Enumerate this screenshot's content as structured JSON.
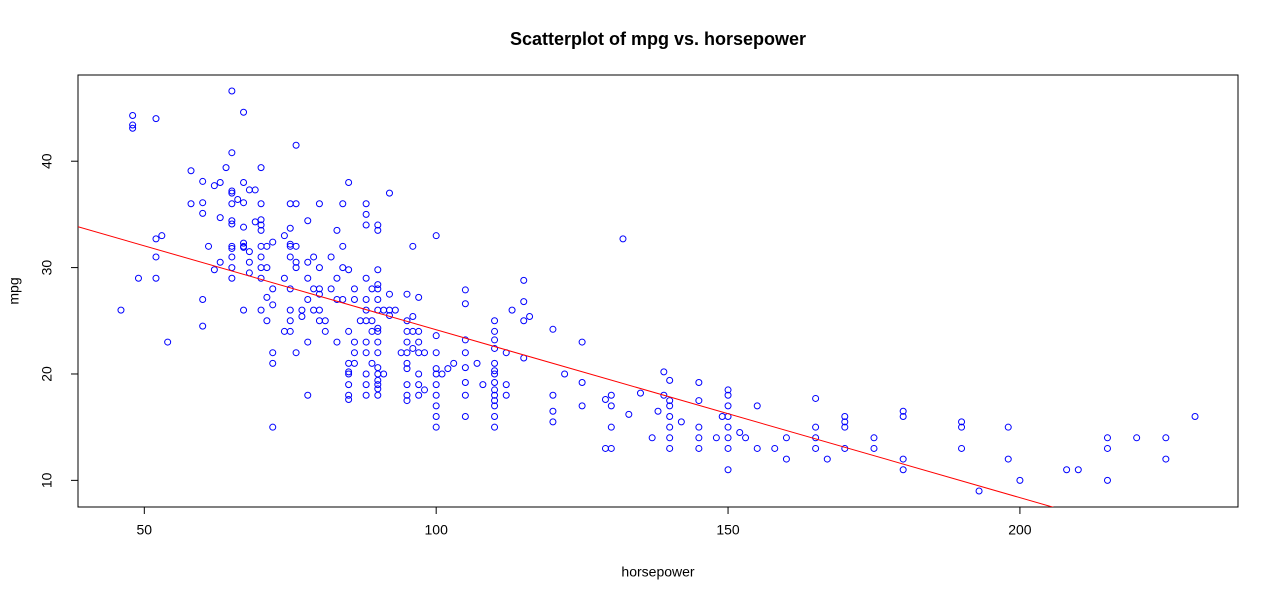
{
  "chart_data": {
    "type": "scatter",
    "title": "Scatterplot of mpg vs. horsepower",
    "x_label": "horsepower",
    "y_label": "mpg",
    "color": "blue",
    "x": [
      46,
      48,
      48,
      48,
      49,
      52,
      52,
      52,
      52,
      53,
      54,
      58,
      58,
      60,
      60,
      60,
      60,
      60,
      61,
      62,
      62,
      63,
      63,
      63,
      64,
      65,
      65,
      65,
      65,
      65,
      65,
      65,
      65,
      65,
      65,
      65,
      65,
      66,
      67,
      67,
      67,
      67,
      67,
      67,
      67,
      67,
      68,
      68,
      68,
      68,
      69,
      69,
      70,
      70,
      70,
      70,
      70,
      70,
      70,
      70,
      70,
      70,
      71,
      71,
      71,
      71,
      72,
      72,
      72,
      72,
      72,
      72,
      74,
      74,
      74,
      75,
      75,
      75,
      75,
      75,
      75,
      75,
      75,
      75,
      76,
      76,
      76,
      76,
      76,
      76,
      77,
      77,
      78,
      78,
      78,
      78,
      78,
      78,
      79,
      79,
      79,
      80,
      80,
      80,
      80,
      80,
      80,
      81,
      81,
      82,
      82,
      83,
      83,
      83,
      83,
      84,
      84,
      84,
      84,
      85,
      85,
      85,
      85,
      85,
      85,
      85,
      85,
      85,
      86,
      86,
      86,
      86,
      86,
      87,
      88,
      88,
      88,
      88,
      88,
      88,
      88,
      88,
      88,
      88,
      88,
      88,
      89,
      89,
      89,
      89,
      90,
      90,
      90,
      90,
      90,
      90,
      90,
      90,
      90,
      90,
      90,
      90,
      90,
      90,
      90,
      90,
      90,
      91,
      91,
      92,
      92,
      92,
      92,
      93,
      94,
      95,
      95,
      95,
      95,
      95,
      95,
      95,
      95,
      95,
      95,
      96,
      96,
      96,
      96,
      97,
      97,
      97,
      97,
      97,
      97,
      97,
      98,
      98,
      100,
      100,
      100,
      100,
      100,
      100,
      100,
      100,
      100,
      100,
      101,
      102,
      103,
      105,
      105,
      105,
      105,
      105,
      105,
      105,
      105,
      107,
      108,
      110,
      110,
      110,
      110,
      110,
      110,
      110,
      110,
      110,
      110,
      110,
      110,
      110,
      110,
      112,
      112,
      112,
      113,
      115,
      115,
      115,
      115,
      116,
      120,
      120,
      120,
      120,
      122,
      125,
      125,
      125,
      129,
      129,
      130,
      130,
      130,
      130,
      132,
      133,
      135,
      137,
      138,
      139,
      139,
      140,
      140,
      140,
      140,
      140,
      140,
      140,
      142,
      145,
      145,
      145,
      145,
      145,
      148,
      149,
      150,
      150,
      150,
      150,
      150,
      150,
      150,
      150,
      152,
      153,
      155,
      155,
      158,
      160,
      160,
      165,
      165,
      165,
      165,
      167,
      170,
      170,
      170,
      170,
      175,
      175,
      180,
      180,
      180,
      180,
      190,
      190,
      190,
      193,
      198,
      198,
      200,
      208,
      210,
      215,
      215,
      215,
      220,
      225,
      225,
      230
    ],
    "values": [
      26,
      43.4,
      44.3,
      43.1,
      29,
      44,
      29,
      31,
      32.7,
      33,
      23,
      39.1,
      36,
      38.1,
      36.1,
      35.1,
      27,
      24.5,
      32,
      37.7,
      29.8,
      38,
      34.7,
      30.5,
      39.4,
      46.6,
      40.8,
      37.2,
      37,
      36,
      34.4,
      34.1,
      32,
      31.8,
      31,
      30,
      29,
      36.4,
      44.6,
      38,
      36.1,
      33.8,
      32.3,
      31.9,
      32,
      26,
      37.3,
      31.5,
      30.5,
      29.5,
      34.3,
      37.3,
      39.4,
      36,
      34.5,
      34,
      33.5,
      32,
      31,
      30,
      29,
      26,
      32,
      30,
      27.2,
      25,
      32.4,
      28,
      26.5,
      22,
      21,
      15,
      33,
      29,
      24,
      36,
      33.7,
      32.2,
      32,
      31,
      28,
      26,
      25,
      24,
      41.5,
      36,
      32,
      30.5,
      30,
      22,
      25.4,
      26,
      34.4,
      30.5,
      29,
      27,
      23,
      18,
      31,
      28,
      26,
      36,
      30,
      28,
      27.5,
      26,
      25,
      24,
      25,
      28,
      31,
      33.5,
      29,
      27,
      23,
      36,
      32,
      30,
      27,
      38,
      29.8,
      24,
      21,
      20.2,
      20,
      19,
      18,
      17.6,
      27,
      28,
      23,
      22,
      21,
      25,
      36,
      35,
      34,
      29,
      27,
      26,
      25,
      23,
      22,
      20,
      19,
      18,
      28,
      25,
      24,
      21,
      34,
      33.5,
      29.8,
      28.4,
      28,
      27,
      26,
      24.3,
      24,
      23,
      22,
      20.6,
      20,
      19.4,
      19,
      18.6,
      18,
      26,
      20,
      37,
      27.5,
      26,
      25.5,
      26,
      22,
      27.5,
      25,
      24,
      23,
      22,
      21,
      20.5,
      19,
      18,
      17.5,
      32,
      25.4,
      24,
      22.4,
      27.2,
      24,
      23,
      22,
      20,
      19,
      18,
      22,
      18.5,
      33,
      23.6,
      22,
      20.5,
      20,
      19,
      18,
      17,
      16,
      15,
      20,
      20.5,
      21,
      27.9,
      26.6,
      23.2,
      22,
      20.6,
      19.2,
      18,
      16,
      21,
      19,
      25,
      24,
      23.2,
      22.4,
      21,
      20.3,
      20,
      19.2,
      18.5,
      18,
      17.5,
      17,
      16,
      15,
      22,
      19,
      18,
      26,
      28.8,
      26.8,
      25,
      21.5,
      25.4,
      24.2,
      18,
      16.5,
      15.5,
      20,
      23,
      19.2,
      17,
      17.6,
      13,
      18,
      17,
      15,
      13,
      32.7,
      16.2,
      18.2,
      14,
      16.5,
      20.2,
      18,
      19.4,
      17.5,
      17,
      16,
      15,
      14,
      13,
      15.5,
      19.2,
      17.5,
      15,
      14,
      13,
      14,
      16,
      18.5,
      18,
      17,
      16,
      15,
      14,
      13,
      11,
      14.5,
      14,
      17,
      13,
      13,
      14,
      12,
      17.7,
      15,
      14,
      13,
      12,
      16,
      15.5,
      15,
      13,
      14,
      13,
      16.5,
      16,
      12,
      11,
      15.5,
      15,
      13,
      9,
      15,
      12,
      10,
      11,
      11,
      14,
      13,
      10,
      14,
      14,
      12,
      16
    ],
    "xlim": [
      38.64,
      237.36
    ],
    "xticks": [
      50,
      100,
      150,
      200
    ],
    "ylim": [
      7.496,
      48.104
    ],
    "yticks": [
      10,
      20,
      30,
      40
    ],
    "trendline": {
      "intercept": 39.936,
      "slope": -0.1578,
      "color": "red"
    }
  }
}
